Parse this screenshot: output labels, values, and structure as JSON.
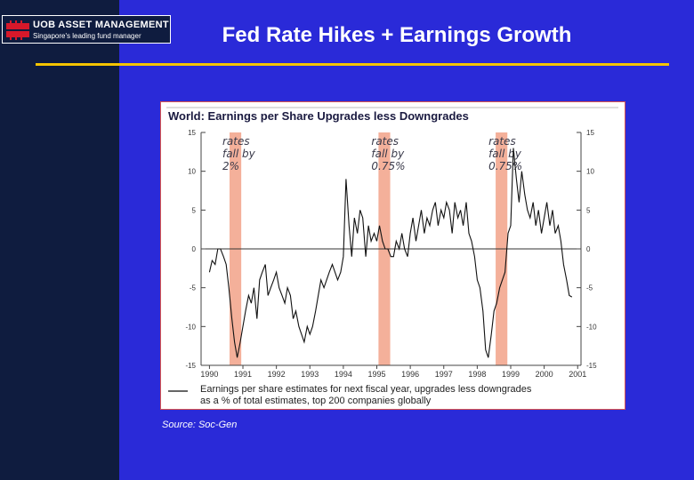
{
  "header": {
    "logo_name": "UOB ASSET MANAGEMENT",
    "logo_tagline": "Singapore's leading fund manager",
    "title": "Fed Rate Hikes + Earnings Growth"
  },
  "source": "Source: Soc-Gen",
  "chart_data": {
    "type": "line",
    "title": "World: Earnings per Share Upgrades less Downgrades",
    "legend_text": [
      "Earnings per share estimates for next fiscal year, upgrades less downgrades",
      "as a % of total estimates, top 200 companies globally"
    ],
    "ylim": [
      -15,
      15
    ],
    "y_ticks": [
      15,
      10,
      5,
      0,
      -5,
      -10,
      -15
    ],
    "x_ticks": [
      "1990",
      "1991",
      "1992",
      "1993",
      "1994",
      "1995",
      "1996",
      "1997",
      "1998",
      "1999",
      "2000",
      "2001"
    ],
    "xlim": [
      1989.75,
      2001.1
    ],
    "annotations": [
      {
        "lines": [
          "rates",
          "fall by",
          "2%"
        ],
        "x_start": 1990.6,
        "x_end": 1990.95
      },
      {
        "lines": [
          "rates",
          "fall by",
          "0.75%"
        ],
        "x_start": 1995.05,
        "x_end": 1995.4
      },
      {
        "lines": [
          "rates",
          "fall by",
          "0.75%"
        ],
        "x_start": 1998.55,
        "x_end": 1998.9
      }
    ],
    "series": [
      {
        "x": [
          1990.0,
          1990.08,
          1990.17,
          1990.25,
          1990.33,
          1990.42,
          1990.5,
          1990.58,
          1990.67,
          1990.75,
          1990.83,
          1990.92,
          1991.0,
          1991.08,
          1991.17,
          1991.25,
          1991.33,
          1991.42,
          1991.5,
          1991.58,
          1991.67,
          1991.75,
          1991.83,
          1991.92,
          1992.0,
          1992.08,
          1992.17,
          1992.25,
          1992.33,
          1992.42,
          1992.5,
          1992.58,
          1992.67,
          1992.75,
          1992.83,
          1992.92,
          1993.0,
          1993.08,
          1993.17,
          1993.25,
          1993.33,
          1993.42,
          1993.5,
          1993.58,
          1993.67,
          1993.75,
          1993.83,
          1993.92,
          1994.0,
          1994.08,
          1994.17,
          1994.25,
          1994.33,
          1994.42,
          1994.5,
          1994.58,
          1994.67,
          1994.75,
          1994.83,
          1994.92,
          1995.0,
          1995.08,
          1995.17,
          1995.25,
          1995.33,
          1995.42,
          1995.5,
          1995.58,
          1995.67,
          1995.75,
          1995.83,
          1995.92,
          1996.0,
          1996.08,
          1996.17,
          1996.25,
          1996.33,
          1996.42,
          1996.5,
          1996.58,
          1996.67,
          1996.75,
          1996.83,
          1996.92,
          1997.0,
          1997.08,
          1997.17,
          1997.25,
          1997.33,
          1997.42,
          1997.5,
          1997.58,
          1997.67,
          1997.75,
          1997.83,
          1997.92,
          1998.0,
          1998.08,
          1998.17,
          1998.25,
          1998.33,
          1998.42,
          1998.5,
          1998.58,
          1998.67,
          1998.75,
          1998.83,
          1998.92,
          1999.0,
          1999.08,
          1999.17,
          1999.25,
          1999.33,
          1999.42,
          1999.5,
          1999.58,
          1999.67,
          1999.75,
          1999.83,
          1999.92,
          2000.0,
          2000.08,
          2000.17,
          2000.25,
          2000.33,
          2000.42,
          2000.5,
          2000.58,
          2000.67,
          2000.75,
          2000.83
        ],
        "values": [
          -3,
          -1.5,
          -2,
          0,
          0,
          -1,
          -2,
          -5,
          -9,
          -12,
          -14,
          -12,
          -10,
          -8,
          -6,
          -7,
          -5,
          -9,
          -4,
          -3,
          -2,
          -6,
          -5,
          -4,
          -3,
          -5,
          -6,
          -7,
          -5,
          -6,
          -9,
          -8,
          -10,
          -11,
          -12,
          -10,
          -11,
          -10,
          -8,
          -6,
          -4,
          -5,
          -4,
          -3,
          -2,
          -3,
          -4,
          -3,
          -1,
          9,
          3,
          -1,
          4,
          2,
          5,
          4,
          -1,
          3,
          1,
          2,
          1,
          3,
          1,
          0,
          0,
          -1,
          -1,
          1,
          0,
          2,
          0,
          -1,
          2,
          4,
          1,
          3,
          5,
          2,
          4,
          3,
          5,
          6,
          3,
          5,
          4,
          6,
          5,
          2,
          6,
          4,
          5,
          3,
          6,
          2,
          1,
          -1,
          -4,
          -5,
          -8,
          -13,
          -14,
          -11,
          -8,
          -7,
          -5,
          -4,
          -3,
          2,
          3,
          13,
          9,
          6,
          10,
          7,
          5,
          4,
          6,
          3,
          5,
          2,
          4,
          6,
          3,
          5,
          2,
          3,
          1,
          -2,
          -4,
          -6,
          -6.2
        ]
      }
    ]
  }
}
